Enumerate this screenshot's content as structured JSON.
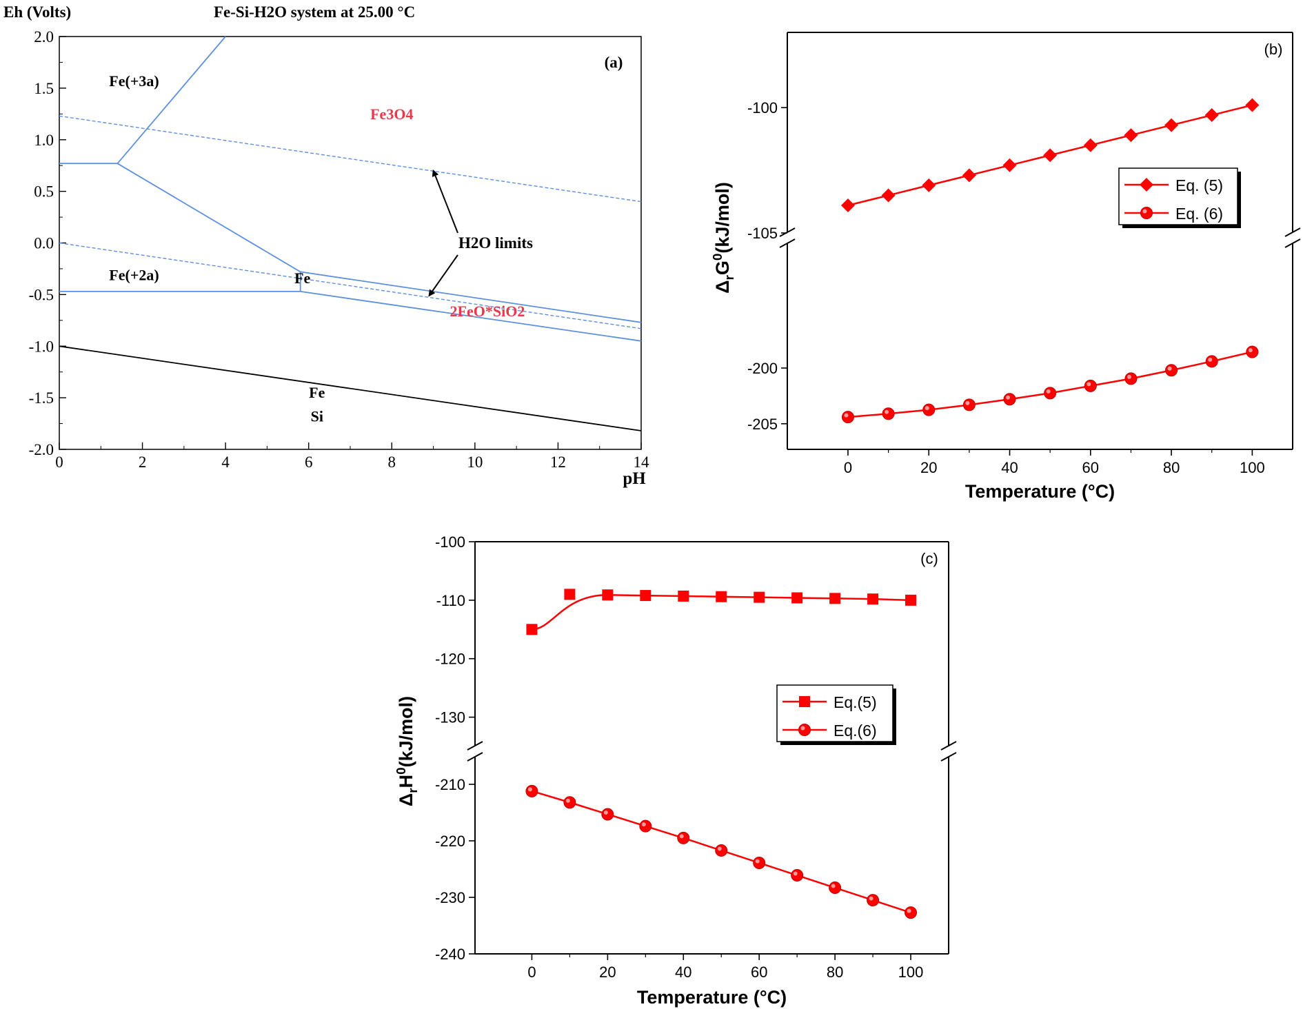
{
  "chart_data": [
    {
      "id": "a",
      "type": "line",
      "panel_label": "(a)",
      "title": "Fe-Si-H2O system at 25.00 °C",
      "ylabel": "Eh (Volts)",
      "xlabel": "pH",
      "xlim": [
        0,
        14
      ],
      "ylim": [
        -2.0,
        2.0
      ],
      "xticks": [
        0,
        2,
        4,
        6,
        8,
        10,
        12,
        14
      ],
      "yticks": [
        2.0,
        1.5,
        1.0,
        0.5,
        0.0,
        -0.5,
        -1.0,
        -1.5,
        -2.0
      ],
      "ytick_labels": [
        "2.0",
        "1.5",
        "1.0",
        "0.5",
        "0.0",
        "-0.5",
        "-1.0",
        "-1.5",
        "-2.0"
      ],
      "colors": {
        "boundary": "#5b8fe0",
        "si_boundary": "#000000",
        "label_red": "#e8384b",
        "label_black": "#000000"
      },
      "boundaries": [
        {
          "name": "b1",
          "style": "solid",
          "color": "blue",
          "points": [
            [
              0,
              0.77
            ],
            [
              1.4,
              0.77
            ]
          ]
        },
        {
          "name": "b2",
          "style": "solid",
          "color": "blue",
          "points": [
            [
              1.4,
              0.77
            ],
            [
              4.0,
              2.0
            ]
          ]
        },
        {
          "name": "b3",
          "style": "solid",
          "color": "blue",
          "points": [
            [
              1.4,
              0.77
            ],
            [
              5.8,
              -0.28
            ]
          ]
        },
        {
          "name": "b4",
          "style": "solid",
          "color": "blue",
          "points": [
            [
              0,
              -0.47
            ],
            [
              5.8,
              -0.47
            ]
          ]
        },
        {
          "name": "b5",
          "style": "solid",
          "color": "blue",
          "points": [
            [
              5.8,
              -0.28
            ],
            [
              14,
              -0.77
            ]
          ]
        },
        {
          "name": "b6",
          "style": "solid",
          "color": "blue",
          "points": [
            [
              5.8,
              -0.47
            ],
            [
              14,
              -0.95
            ]
          ]
        },
        {
          "name": "b7",
          "style": "solid",
          "color": "blue",
          "points": [
            [
              5.8,
              -0.28
            ],
            [
              5.8,
              -0.47
            ]
          ]
        },
        {
          "name": "b8",
          "style": "solid",
          "color": "black",
          "points": [
            [
              0,
              -1.0
            ],
            [
              14,
              -1.82
            ]
          ]
        },
        {
          "name": "h2o-upper",
          "style": "dashed",
          "color": "blue",
          "points": [
            [
              0,
              1.23
            ],
            [
              14,
              0.4
            ]
          ]
        },
        {
          "name": "h2o-lower",
          "style": "dashed",
          "color": "blue",
          "points": [
            [
              0,
              0.0
            ],
            [
              14,
              -0.83
            ]
          ]
        }
      ],
      "region_labels": [
        {
          "text": "Fe(+3a)",
          "x": 1.8,
          "y": 1.52,
          "color": "black"
        },
        {
          "text": "Fe3O4",
          "x": 8.0,
          "y": 1.2,
          "color": "red"
        },
        {
          "text": "Fe(+2a)",
          "x": 1.8,
          "y": -0.36,
          "color": "black"
        },
        {
          "text": "Fe",
          "x": 5.85,
          "y": -0.39,
          "color": "black"
        },
        {
          "text": "2FeO*SiO2",
          "x": 10.3,
          "y": -0.71,
          "color": "red"
        },
        {
          "text": "Fe",
          "x": 6.2,
          "y": -1.5,
          "color": "black"
        },
        {
          "text": "Si",
          "x": 6.2,
          "y": -1.73,
          "color": "black"
        }
      ],
      "annotations": [
        {
          "text": "H2O limits",
          "x": 10.5,
          "y": -0.05,
          "arrows_to": [
            [
              9.0,
              0.7
            ],
            [
              8.9,
              -0.51
            ]
          ]
        }
      ]
    },
    {
      "id": "b",
      "type": "line",
      "panel_label": "(b)",
      "xlabel": "Temperature (°C)",
      "ylabel": "ΔrG0(kJ/mol)",
      "x": [
        0,
        10,
        20,
        30,
        40,
        50,
        60,
        70,
        80,
        90,
        100
      ],
      "xlim": [
        -15,
        110
      ],
      "xticks": [
        0,
        20,
        40,
        60,
        80,
        100
      ],
      "broken_axis": true,
      "upper_ylim": [
        -105,
        -97
      ],
      "upper_yticks": [
        -100,
        -105
      ],
      "lower_ylim": [
        -207.3,
        -188.8
      ],
      "lower_yticks": [
        -200,
        -205
      ],
      "legend_position": "upper-right-middle",
      "series": [
        {
          "name": "Eq. (5)",
          "marker": "diamond",
          "color": "#ff0000",
          "axis": "upper",
          "values": [
            -103.9,
            -103.5,
            -103.1,
            -102.7,
            -102.3,
            -101.9,
            -101.5,
            -101.1,
            -100.7,
            -100.3,
            -99.9
          ]
        },
        {
          "name": "Eq. (6)",
          "marker": "circle",
          "color": "#ff0000",
          "axis": "lower",
          "values": [
            -204.4,
            -204.1,
            -203.75,
            -203.3,
            -202.8,
            -202.25,
            -201.6,
            -200.95,
            -200.2,
            -199.4,
            -198.55
          ]
        }
      ]
    },
    {
      "id": "c",
      "type": "line",
      "panel_label": "(c)",
      "xlabel": "Temperature (°C)",
      "ylabel": "ΔrH0(kJ/mol)",
      "x": [
        0,
        10,
        20,
        30,
        40,
        50,
        60,
        70,
        80,
        90,
        100
      ],
      "xlim": [
        -15,
        110
      ],
      "xticks": [
        0,
        20,
        40,
        60,
        80,
        100
      ],
      "broken_axis": true,
      "upper_ylim": [
        -135,
        -100
      ],
      "upper_yticks": [
        -100,
        -110,
        -120,
        -130
      ],
      "lower_ylim": [
        -240,
        -205
      ],
      "lower_yticks": [
        -210,
        -220,
        -230,
        -240
      ],
      "legend_position": "middle-right",
      "series": [
        {
          "name": "Eq.(5)",
          "marker": "square",
          "color": "#ff0000",
          "axis": "upper",
          "values": [
            -115.0,
            -109.0,
            -109.1,
            -109.2,
            -109.3,
            -109.4,
            -109.5,
            -109.6,
            -109.7,
            -109.8,
            -110.0
          ]
        },
        {
          "name": "Eq.(6)",
          "marker": "circle",
          "color": "#ff0000",
          "axis": "lower",
          "values": [
            -211.2,
            -213.2,
            -215.3,
            -217.4,
            -219.5,
            -221.7,
            -223.9,
            -226.1,
            -228.3,
            -230.5,
            -232.7
          ]
        }
      ]
    }
  ]
}
